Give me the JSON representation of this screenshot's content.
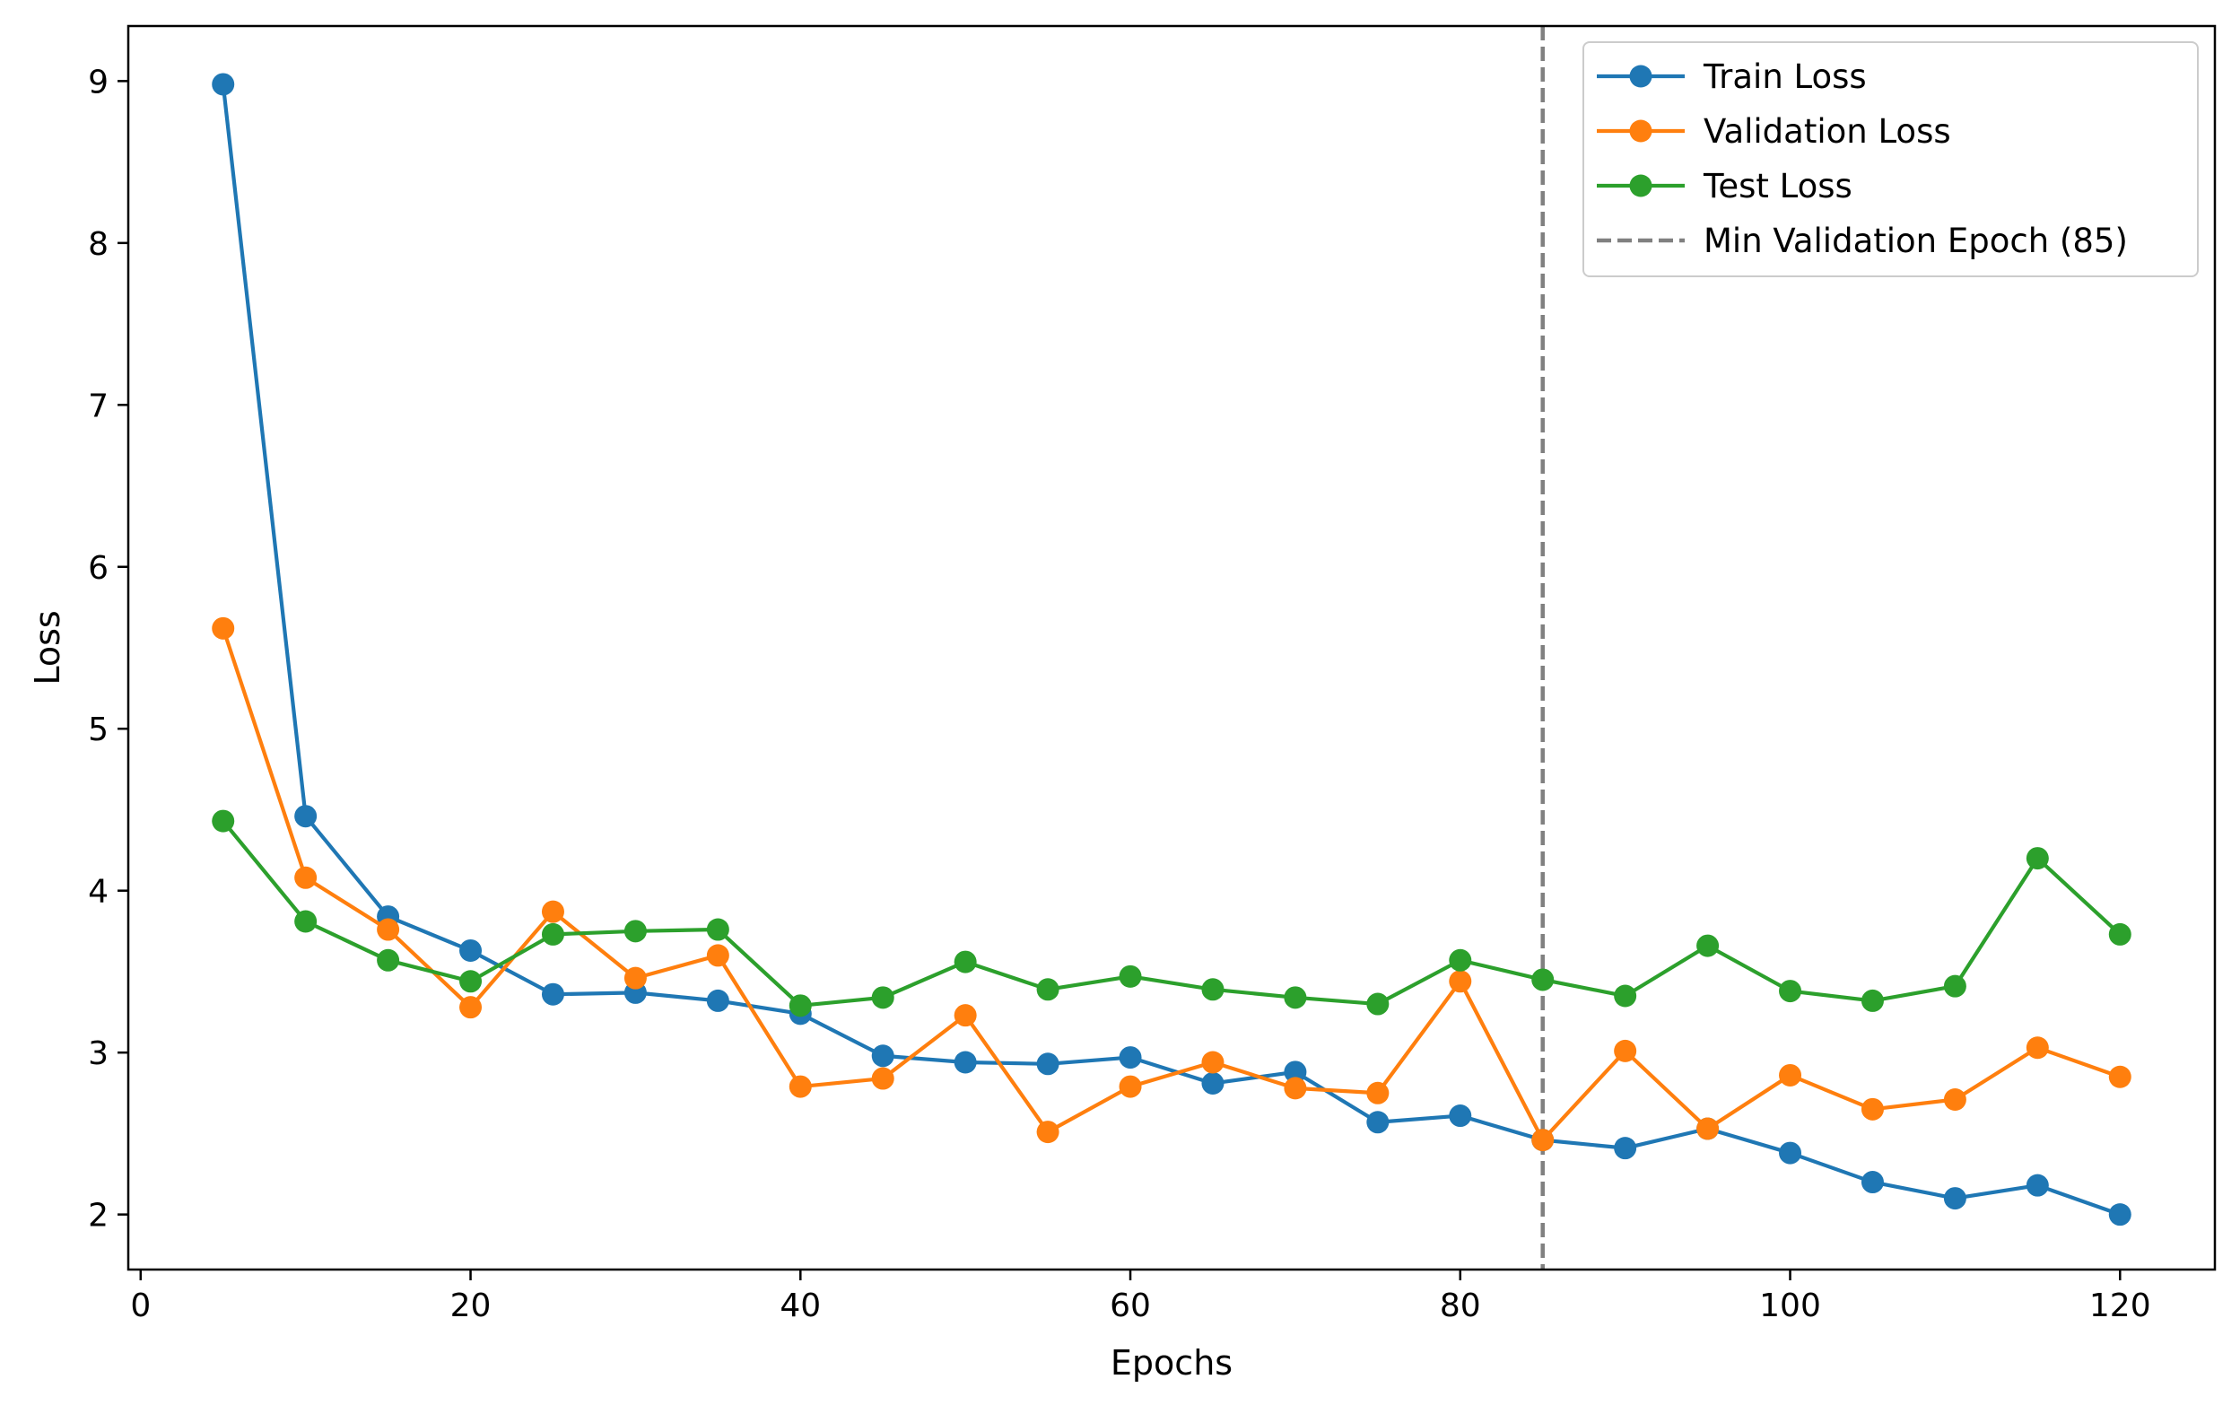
{
  "chart_data": {
    "type": "line",
    "title": "",
    "xlabel": "Epochs",
    "ylabel": "Loss",
    "xlim": [
      -0.75,
      125.75
    ],
    "ylim": [
      1.66,
      9.34
    ],
    "xticks": [
      0,
      20,
      40,
      60,
      80,
      100,
      120
    ],
    "yticks": [
      2,
      3,
      4,
      5,
      6,
      7,
      8,
      9
    ],
    "grid": false,
    "legend_position": "upper right",
    "x": [
      5,
      10,
      15,
      20,
      25,
      30,
      35,
      40,
      45,
      50,
      55,
      60,
      65,
      70,
      75,
      80,
      85,
      90,
      95,
      100,
      105,
      110,
      115,
      120
    ],
    "series": [
      {
        "name": "Train Loss",
        "color": "#1f77b4",
        "values": [
          8.98,
          4.46,
          3.84,
          3.63,
          3.36,
          3.37,
          3.32,
          3.24,
          2.98,
          2.94,
          2.93,
          2.97,
          2.81,
          2.88,
          2.57,
          2.61,
          2.46,
          2.41,
          2.53,
          2.38,
          2.2,
          2.1,
          2.18,
          2.0
        ]
      },
      {
        "name": "Validation Loss",
        "color": "#ff7f0e",
        "values": [
          5.62,
          4.08,
          3.76,
          3.28,
          3.87,
          3.46,
          3.6,
          2.79,
          2.84,
          3.23,
          2.51,
          2.79,
          2.94,
          2.78,
          2.75,
          3.44,
          2.46,
          3.01,
          2.53,
          2.86,
          2.65,
          2.71,
          3.03,
          2.85
        ]
      },
      {
        "name": "Test Loss",
        "color": "#2ca02c",
        "values": [
          4.43,
          3.81,
          3.57,
          3.44,
          3.73,
          3.75,
          3.76,
          3.29,
          3.34,
          3.56,
          3.39,
          3.47,
          3.39,
          3.34,
          3.3,
          3.57,
          3.45,
          3.35,
          3.66,
          3.38,
          3.32,
          3.41,
          4.2,
          3.73
        ]
      }
    ],
    "reference_lines": [
      {
        "orientation": "vertical",
        "x": 85,
        "name": "Min Validation Epoch (85)",
        "color": "#808080",
        "style": "dashed"
      }
    ]
  }
}
